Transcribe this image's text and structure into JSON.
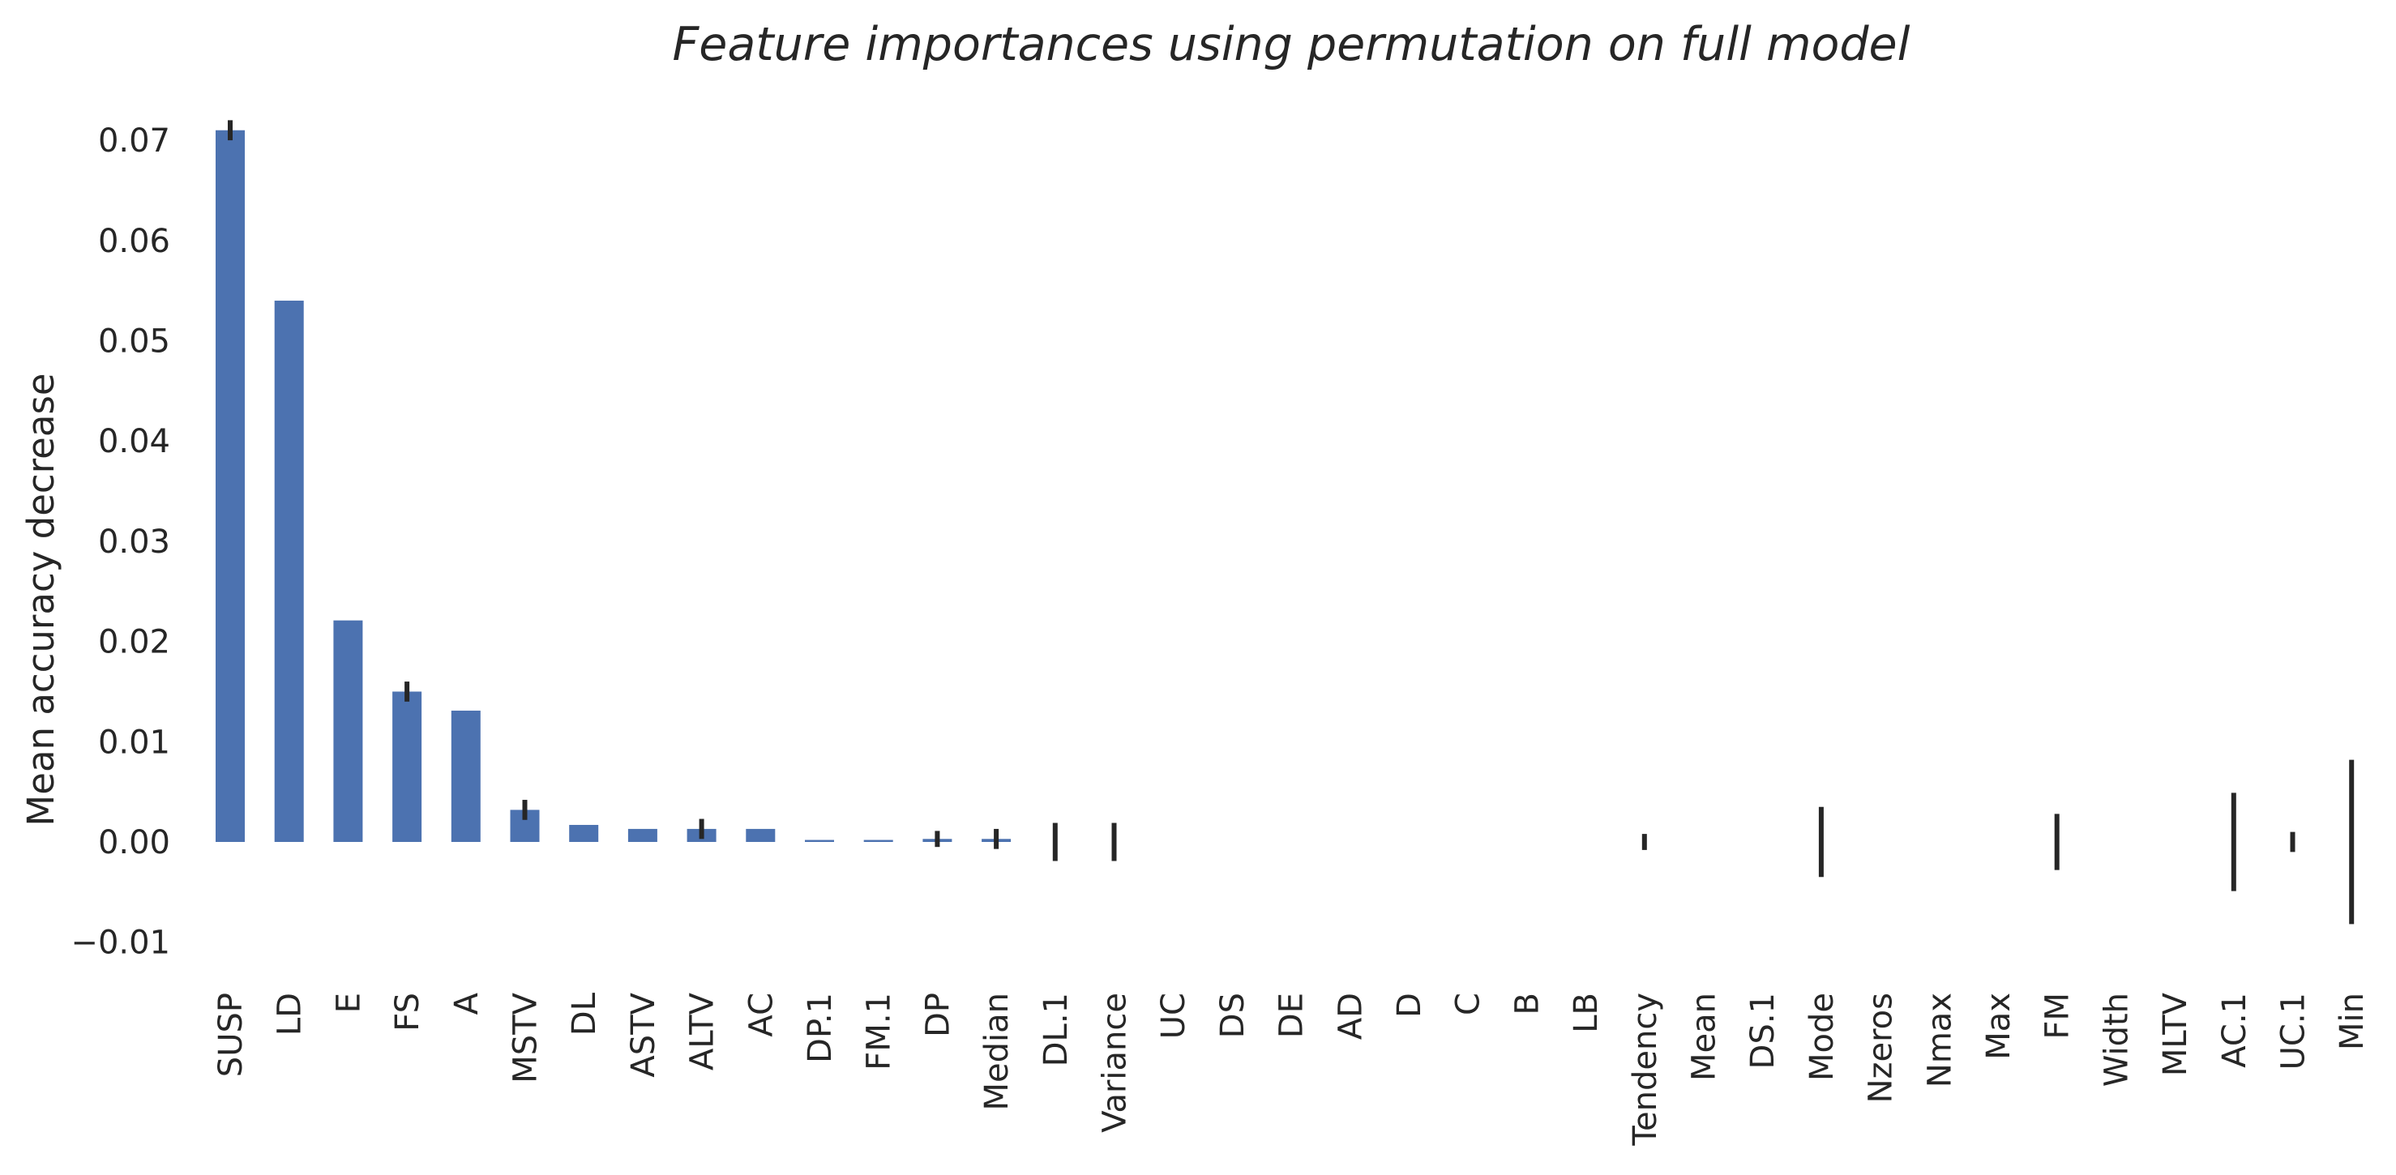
{
  "chart_data": {
    "type": "bar",
    "title": "Feature importances using permutation on full model",
    "xlabel": "",
    "ylabel": "Mean accuracy decrease",
    "ylim": [
      -0.0125,
      0.0735
    ],
    "yticks": [
      -0.01,
      0.0,
      0.01,
      0.02,
      0.03,
      0.04,
      0.05,
      0.06,
      0.07
    ],
    "ytick_labels": [
      "−0.01",
      "0.00",
      "0.01",
      "0.02",
      "0.03",
      "0.04",
      "0.05",
      "0.06",
      "0.07"
    ],
    "grid": false,
    "bar_color": "#4c72b0",
    "error_color": "#262626",
    "categories": [
      "SUSP",
      "LD",
      "E",
      "FS",
      "A",
      "MSTV",
      "DL",
      "ASTV",
      "ALTV",
      "AC",
      "DP.1",
      "FM.1",
      "DP",
      "Median",
      "DL.1",
      "Variance",
      "UC",
      "DS",
      "DE",
      "AD",
      "D",
      "C",
      "B",
      "LB",
      "Tendency",
      "Mean",
      "DS.1",
      "Mode",
      "Nzeros",
      "Nmax",
      "Max",
      "FM",
      "Width",
      "MLTV",
      "AC.1",
      "UC.1",
      "Min"
    ],
    "values": [
      0.071,
      0.054,
      0.0221,
      0.015,
      0.0131,
      0.0032,
      0.0017,
      0.0013,
      0.0013,
      0.0013,
      0.0002,
      0.0002,
      0.0003,
      0.0003,
      0.0,
      0.0,
      0.0,
      0.0,
      0.0,
      0.0,
      0.0,
      0.0,
      0.0,
      0.0,
      0.0,
      0.0,
      0.0,
      0.0,
      0.0,
      0.0,
      0.0,
      0.0,
      0.0,
      0.0,
      0.0,
      0.0,
      0.0
    ],
    "errors": [
      0.001,
      0.0,
      0.0,
      0.001,
      0.0,
      0.001,
      0.0,
      0.0,
      0.001,
      0.0,
      0.0,
      0.0,
      0.0008,
      0.001,
      0.0019,
      0.0019,
      0.0,
      0.0,
      0.0,
      0.0,
      0.0,
      0.0,
      0.0,
      0.0,
      0.0008,
      0.0,
      0.0,
      0.0035,
      0.0,
      0.0,
      0.0,
      0.0028,
      0.0,
      0.0,
      0.0049,
      0.001,
      0.0082
    ]
  }
}
